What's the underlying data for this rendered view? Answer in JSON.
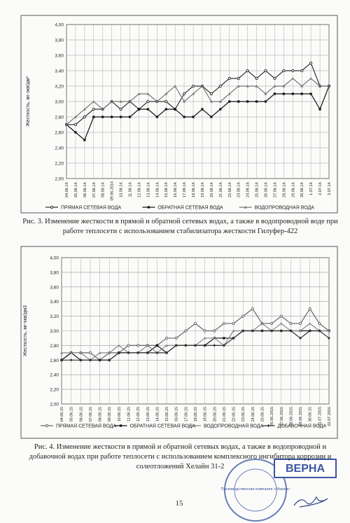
{
  "chart_data": [
    {
      "type": "line",
      "y_label": "Жесткость, мг-экв/дм³",
      "grid": true,
      "legend": "bottom",
      "categories": [
        "04.06.14.",
        "05.06.14.",
        "06.06.14.",
        "07.06.14.",
        "08.06.14.",
        "09.06.2014",
        "10.06.14.",
        "11.06.14.",
        "12.06.14.",
        "13.06.14.",
        "14.06.14.",
        "15.06.14.",
        "16.06.14.",
        "17.06.14.",
        "18.06.14.",
        "19.06.14.",
        "20.06.14.",
        "21.06.14.",
        "22.06.14.",
        "23.06.14.",
        "24.06.14.",
        "25.06.14.",
        "26.06.14.",
        "27.06.14.",
        "28.06.14.",
        "29.06.14.",
        "30.06.14.",
        "1.07.14.",
        "2.07.14.",
        "3.07.14."
      ],
      "ylim": [
        2,
        4
      ],
      "yticks": [
        {
          "value": 2,
          "label": "2,00"
        },
        {
          "value": 2.2,
          "label": "2,20"
        },
        {
          "value": 2.4,
          "label": "2,40"
        },
        {
          "value": 2.6,
          "label": "2,60"
        },
        {
          "value": 2.8,
          "label": "2,80"
        },
        {
          "value": 3,
          "label": "3,00"
        },
        {
          "value": 3.2,
          "label": "3,20"
        },
        {
          "value": 3.4,
          "label": "3,40"
        },
        {
          "value": 3.6,
          "label": "3,60"
        },
        {
          "value": 3.8,
          "label": "3,80"
        },
        {
          "value": 4,
          "label": "4,00"
        }
      ],
      "series": [
        {
          "name": "ПРЯМАЯ СЕТЕВАЯ ВОДА",
          "color": "#333333",
          "values": [
            2.7,
            2.7,
            2.8,
            2.9,
            2.9,
            3.0,
            2.9,
            3.0,
            2.9,
            3.0,
            3.0,
            3.0,
            2.9,
            3.1,
            3.2,
            3.2,
            3.1,
            3.2,
            3.3,
            3.3,
            3.4,
            3.3,
            3.4,
            3.3,
            3.4,
            3.4,
            3.4,
            3.5,
            3.2,
            3.2
          ]
        },
        {
          "name": "ОБРАТНАЯ СЕТЕВАЯ ВОДА",
          "color": "#111111",
          "values": [
            2.7,
            2.6,
            2.5,
            2.8,
            2.8,
            2.8,
            2.8,
            2.8,
            2.9,
            2.9,
            2.8,
            2.9,
            2.9,
            2.8,
            2.8,
            2.9,
            2.8,
            2.9,
            3.0,
            3.0,
            3.0,
            3.0,
            3.0,
            3.1,
            3.1,
            3.1,
            3.1,
            3.1,
            2.9,
            3.2
          ]
        },
        {
          "name": "ВОДОПРОВОДНАЯ ВОДА",
          "color": "#777777",
          "values": [
            2.7,
            2.8,
            2.9,
            3.0,
            2.9,
            3.0,
            3.0,
            3.0,
            3.1,
            3.1,
            3.0,
            3.1,
            3.2,
            3.0,
            3.1,
            3.2,
            3.0,
            3.0,
            3.1,
            3.2,
            3.2,
            3.2,
            3.1,
            3.2,
            3.2,
            3.3,
            3.2,
            3.3,
            3.2,
            3.2
          ]
        }
      ]
    },
    {
      "type": "line",
      "y_label": "Жесткость, мг-экв/дм3",
      "grid": true,
      "legend": "bottom",
      "categories": [
        "04.06.15",
        "05.06.15",
        "06.06.15",
        "07.06.15",
        "08.06.15",
        "09.06.15",
        "10.06.15",
        "11.06.15",
        "12.06.15",
        "13.06.15",
        "14.06.15",
        "15.06.15",
        "16.06.15",
        "17.06.15",
        "18.06.15",
        "19.06.15",
        "20.06.15",
        "21.06.15",
        "22.06.15",
        "23.06.15",
        "24.06.15",
        "25.06.15",
        "26.06.2015",
        "27.06.2015",
        "28.06.2015",
        "29.06.2015",
        "30.06.15",
        "01.07.2015",
        "02.07.2015"
      ],
      "ylim": [
        2,
        4
      ],
      "yticks": [
        {
          "value": 2,
          "label": "2,00"
        },
        {
          "value": 2.2,
          "label": "2,20"
        },
        {
          "value": 2.4,
          "label": "2,40"
        },
        {
          "value": 2.6,
          "label": "2,60"
        },
        {
          "value": 2.8,
          "label": "2,80"
        },
        {
          "value": 3,
          "label": "3,00"
        },
        {
          "value": 3.2,
          "label": "3,20"
        },
        {
          "value": 3.4,
          "label": "3,40"
        },
        {
          "value": 3.6,
          "label": "3,60"
        },
        {
          "value": 3.8,
          "label": "3,80"
        },
        {
          "value": 4,
          "label": "4,00"
        }
      ],
      "series": [
        {
          "name": "ПРЯМАЯ СЕТЕВАЯ ВОДА",
          "color": "#666666",
          "values": [
            2.6,
            2.7,
            2.7,
            2.7,
            2.6,
            2.7,
            2.7,
            2.8,
            2.8,
            2.8,
            2.8,
            2.9,
            2.9,
            3.0,
            3.1,
            3.0,
            3.0,
            3.1,
            3.1,
            3.2,
            3.3,
            3.1,
            3.1,
            3.2,
            3.1,
            3.1,
            3.3,
            3.1,
            3.0
          ]
        },
        {
          "name": "ОБРАТНАЯ СЕТЕВАЯ ВОДА",
          "color": "#111111",
          "values": [
            2.6,
            2.7,
            2.6,
            2.6,
            2.6,
            2.6,
            2.7,
            2.7,
            2.7,
            2.7,
            2.8,
            2.7,
            2.8,
            2.8,
            2.8,
            2.8,
            2.9,
            2.9,
            2.9,
            3.0,
            3.0,
            3.0,
            3.0,
            3.0,
            3.0,
            3.0,
            3.0,
            3.0,
            3.0
          ]
        },
        {
          "name": "ВОДОПРОВОДНАЯ ВОДА",
          "color": "#888888",
          "values": [
            2.7,
            2.7,
            2.7,
            2.6,
            2.7,
            2.7,
            2.8,
            2.7,
            2.7,
            2.8,
            2.7,
            2.8,
            2.8,
            2.8,
            2.8,
            2.9,
            2.9,
            2.8,
            3.0,
            3.0,
            3.0,
            3.1,
            3.0,
            3.1,
            3.0,
            3.0,
            3.1,
            3.0,
            3.0
          ]
        },
        {
          "name": "ДОБАВОЧНАЯ ВОДА",
          "color": "#333333",
          "values": [
            2.6,
            2.6,
            2.6,
            2.6,
            2.6,
            2.6,
            2.7,
            2.7,
            2.7,
            2.7,
            2.7,
            2.7,
            2.8,
            2.8,
            2.8,
            2.8,
            2.8,
            2.8,
            2.9,
            3.0,
            3.0,
            3.0,
            3.0,
            3.0,
            3.0,
            2.9,
            3.0,
            3.0,
            2.9
          ]
        }
      ]
    }
  ],
  "captions": [
    "Рис. 3. Изменение жесткости в прямой и обратной сетевых водах, а также в водопроводной воде при работе теплосети с использованием стабилизатора жесткости Гилуфер-422",
    "Рис. 4. Изменение жесткости в прямой и обратной сетевых водах, а также в водопроводной и добавочной водах при работе теплосети с использованием комплексного ингибитора коррозии и солеотложений Хелайн 31-2"
  ],
  "page_number": "15",
  "stamp": {
    "verified": "ВЕРНА",
    "company": "Производственная компания «Махим»"
  }
}
